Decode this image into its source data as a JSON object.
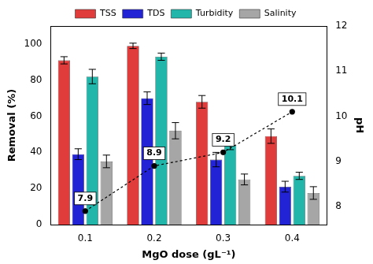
{
  "chart_data": {
    "type": "bar",
    "categories": [
      "0.1",
      "0.2",
      "0.3",
      "0.4"
    ],
    "x_label": "MgO dose (gL⁻¹)",
    "y_label": "Removal (%)",
    "y2_label": "pH",
    "ylim": [
      0,
      110
    ],
    "yticks": [
      0,
      20,
      40,
      60,
      80,
      100
    ],
    "y2lim": [
      7.6,
      12
    ],
    "y2ticks": [
      8,
      9,
      10,
      11,
      12
    ],
    "legend": "top",
    "grid": false,
    "series": [
      {
        "name": "TSS",
        "color": "#e03c3c",
        "values": [
          91,
          99,
          68,
          49
        ],
        "errors": [
          2,
          1.5,
          3.5,
          4
        ]
      },
      {
        "name": "TDS",
        "color": "#2323d6",
        "values": [
          39,
          70,
          36,
          21
        ],
        "errors": [
          3,
          3.5,
          4,
          3
        ]
      },
      {
        "name": "Turbidity",
        "color": "#22b5aa",
        "values": [
          82,
          93,
          44,
          27
        ],
        "errors": [
          4,
          2,
          2.5,
          2
        ]
      },
      {
        "name": "Salinity",
        "color": "#a6a6a6",
        "values": [
          35,
          52,
          25,
          17.5
        ],
        "errors": [
          3.5,
          4.5,
          3,
          3.5
        ]
      },
      {
        "type": "line",
        "axis": "y2",
        "color": "#000000",
        "line_style": "dashed",
        "marker": "circle",
        "data_labels": true,
        "values": [
          7.9,
          8.9,
          9.2,
          10.1
        ]
      }
    ]
  }
}
